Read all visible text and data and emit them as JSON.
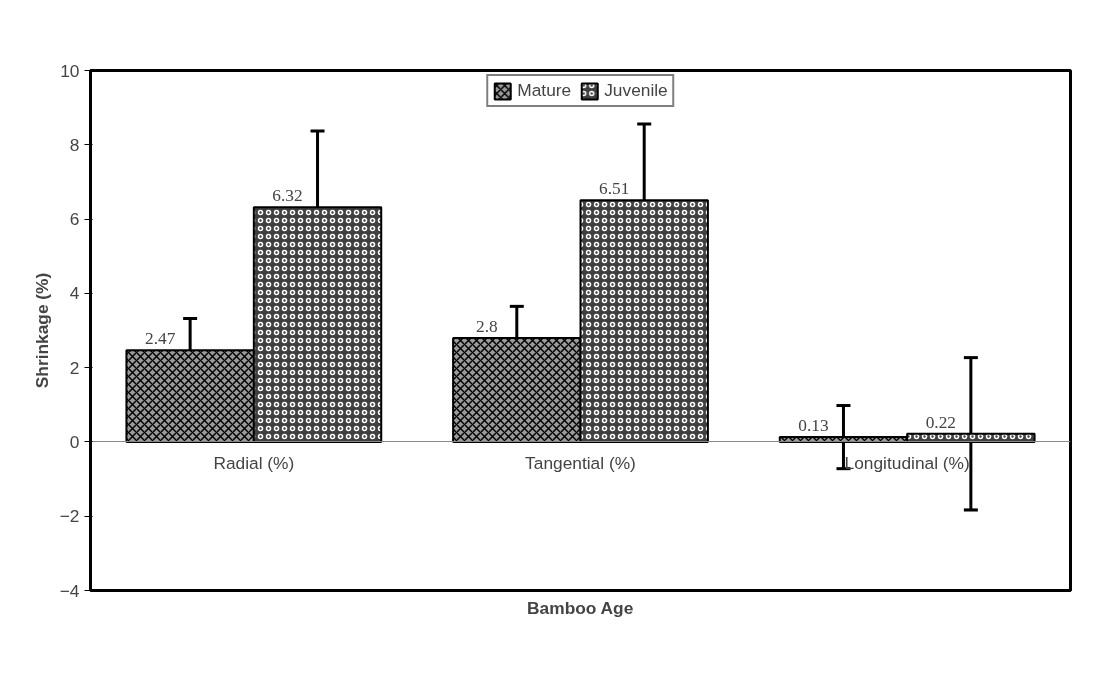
{
  "chart_data": {
    "type": "bar",
    "xlabel": "Bamboo Age",
    "ylabel": "Shrinkage (%)",
    "categories": [
      "Radial (%)",
      "Tangential (%)",
      "Longitudinal (%)"
    ],
    "series": [
      {
        "name": "Mature",
        "color": "#9a9a9a",
        "values": [
          2.47,
          2.8,
          0.13
        ],
        "errors": [
          0.85,
          0.85,
          0.85
        ]
      },
      {
        "name": "Juvenile",
        "color": "#404040",
        "values": [
          6.32,
          6.51,
          0.22
        ],
        "errors": [
          2.05,
          2.05,
          2.05
        ]
      }
    ],
    "ylim": [
      -4,
      10
    ],
    "yticks": [
      -4,
      -2,
      0,
      2,
      4,
      6,
      8,
      10
    ],
    "data_labels": true,
    "grid": false,
    "legend": "top"
  }
}
